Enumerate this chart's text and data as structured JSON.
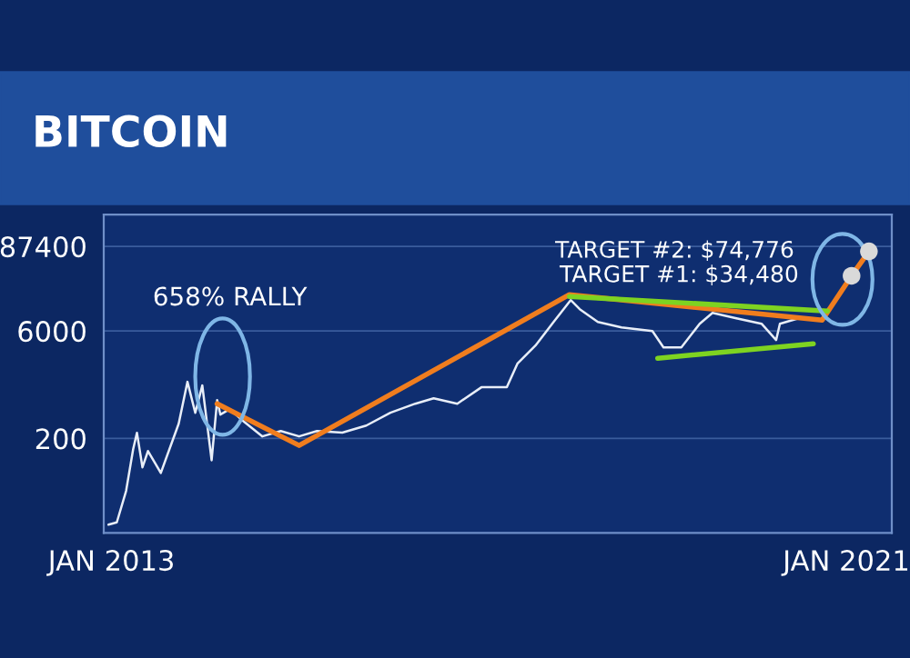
{
  "chart_data": {
    "type": "line",
    "title": "BITCOIN",
    "log": true,
    "ylim": [
      10,
      240000
    ],
    "yticks": [
      200,
      6000,
      87400
    ],
    "xlim": [
      "2012-12-01",
      "2021-07-01"
    ],
    "xticks": [
      {
        "value": "2013-01-01",
        "label": "JAN 2013"
      },
      {
        "value": "2021-01-01",
        "label": "JAN 2021"
      }
    ],
    "grid": "y",
    "legend": false,
    "marker": "none",
    "line_style": "solid",
    "series": [
      {
        "color": "#e8eef8",
        "x": [
          "2012-12-20",
          "2013-01-22",
          "2013-02-28",
          "2013-03-28",
          "2013-04-12",
          "2013-05-04",
          "2013-05-26",
          "2013-07-16",
          "2013-09-25",
          "2013-10-30",
          "2013-11-30",
          "2013-12-28",
          "2014-02-03",
          "2014-02-25",
          "2014-03-10",
          "2014-04-16",
          "2014-06-13",
          "2014-08-24",
          "2014-11-05",
          "2015-01-17",
          "2015-03-29",
          "2015-07-08",
          "2015-10-11",
          "2016-01-15",
          "2016-04-23",
          "2016-07-05",
          "2016-10-07",
          "2017-01-11",
          "2017-04-22",
          "2017-06-03",
          "2017-08-14",
          "2017-10-25",
          "2018-01-01",
          "2018-02-06",
          "2018-04-19",
          "2018-07-22",
          "2018-11-22",
          "2019-01-05",
          "2019-03-17",
          "2019-05-29",
          "2019-07-19",
          "2019-10-22",
          "2020-01-30",
          "2020-03-28",
          "2020-04-12",
          "2020-06-25"
        ],
        "values": [
          13,
          14,
          38,
          142,
          239,
          80,
          134,
          67,
          318,
          1200,
          450,
          1070,
          100,
          670,
          425,
          505,
          337,
          213,
          253,
          213,
          253,
          240,
          300,
          450,
          600,
          713,
          600,
          1010,
          1010,
          2130,
          3780,
          8000,
          15960,
          11970,
          8000,
          6730,
          6000,
          3570,
          3570,
          7550,
          10670,
          8970,
          7550,
          4500,
          7550,
          8970
        ]
      },
      {
        "color": "#f07d1e",
        "x": [
          "2014-02-25",
          "2015-01-17",
          "2017-12-27",
          "2020-09-27",
          "2021-01-22",
          "2021-04-01"
        ],
        "values": [
          600,
          160,
          18970,
          8470,
          34480,
          74776
        ]
      },
      {
        "color": "#7ed321",
        "x": [
          "2017-12-27",
          "2020-10-18"
        ],
        "values": [
          17900,
          11300
        ]
      },
      {
        "color": "#7ed321",
        "x": [
          "2018-12-13",
          "2020-08-23"
        ],
        "values": [
          2530,
          4010
        ]
      },
      {
        "type": "scatter",
        "marker": "circle",
        "color": "#d9d9d9",
        "x": [
          "2021-01-22",
          "2021-04-01"
        ],
        "values": [
          34480,
          74776
        ]
      }
    ],
    "annotations": [
      "658% RALLY",
      "TARGET #2: $74,776",
      "TARGET #1: $34,480"
    ]
  }
}
